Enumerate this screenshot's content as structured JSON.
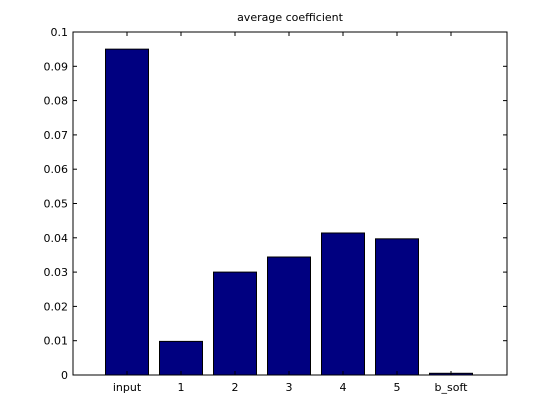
{
  "chart_data": {
    "type": "bar",
    "title": "average coefficient",
    "xlabel": "",
    "ylabel": "",
    "categories": [
      "input",
      "1",
      "2",
      "3",
      "4",
      "5",
      "b_soft"
    ],
    "values": [
      0.095,
      0.0098,
      0.03,
      0.0344,
      0.0414,
      0.0397,
      0.0005
    ],
    "ylim": [
      0,
      0.1
    ],
    "yticks": [
      "0",
      "0.01",
      "0.02",
      "0.03",
      "0.04",
      "0.05",
      "0.06",
      "0.07",
      "0.08",
      "0.09",
      "0.1"
    ],
    "grid": false,
    "legend": "none",
    "colors": {
      "bar_fill": "#000080",
      "bar_edge": "#000000",
      "axes": "#000000",
      "background": "#ffffff"
    }
  }
}
